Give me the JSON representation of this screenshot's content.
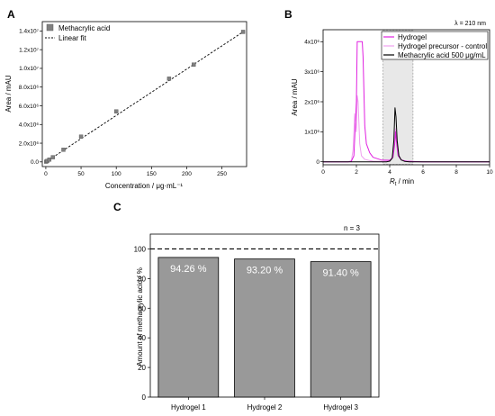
{
  "panels": {
    "A": "A",
    "B": "B",
    "C": "C"
  },
  "chart_data": [
    {
      "id": "A",
      "type": "scatter",
      "xlabel": "Concentration / μg·mL⁻¹",
      "ylabel": "Area / mAU",
      "xlim": [
        -5,
        285
      ],
      "ylim": [
        -500000.0,
        15000000.0
      ],
      "xticks": [
        0,
        50,
        100,
        150,
        200,
        250
      ],
      "yticks": [
        0,
        2000000,
        4000000,
        6000000,
        8000000,
        10000000,
        12000000,
        14000000
      ],
      "ytick_labels": [
        "0.0",
        "2.0x10⁶",
        "4.0x10⁶",
        "6.0x10⁶",
        "8.0x10⁶",
        "1.0x10⁷",
        "1.2x10⁷",
        "1.4x10⁷"
      ],
      "series": [
        {
          "name": "Methacrylic acid",
          "marker": "square",
          "color": "#808080",
          "x": [
            0.5,
            2,
            5,
            10,
            25,
            50,
            100,
            175,
            210,
            280
          ],
          "y": [
            25000,
            100000,
            250000,
            500000,
            1300000,
            2700000,
            5400000,
            8900000,
            10400000,
            13900000
          ]
        },
        {
          "name": "Linear fit",
          "style": "dashed",
          "color": "#000000",
          "x": [
            0,
            282
          ],
          "y": [
            0,
            14000000
          ]
        }
      ],
      "legend": "top-left"
    },
    {
      "id": "B",
      "type": "line",
      "annotation": "λ = 210 nm",
      "xlabel_main": "R",
      "xlabel_sub": "t",
      "xlabel_rest": " / min",
      "ylabel": "Area / mAU",
      "xlim": [
        0,
        10
      ],
      "ylim": [
        -100000,
        4400000
      ],
      "xticks": [
        0,
        2,
        4,
        6,
        8,
        10
      ],
      "yticks": [
        0,
        1000000,
        2000000,
        3000000,
        4000000
      ],
      "ytick_labels": [
        "0",
        "1x10⁶",
        "2x10⁶",
        "3x10⁶",
        "4x10⁶"
      ],
      "shaded_region": [
        3.6,
        5.4
      ],
      "series": [
        {
          "name": "Hydrogel",
          "color": "#e020e0",
          "x": [
            0,
            1.5,
            1.7,
            1.85,
            2.0,
            2.05,
            2.1,
            2.15,
            2.3,
            2.35,
            2.4,
            2.5,
            2.6,
            2.8,
            3.0,
            3.5,
            4.0,
            4.2,
            4.3,
            4.35,
            4.4,
            4.5,
            4.7,
            5.0,
            6.0,
            10
          ],
          "y": [
            0,
            0,
            20000,
            200000,
            2000000,
            4000000,
            4000000,
            4000000,
            4000000,
            4000000,
            3500000,
            1200000,
            600000,
            300000,
            150000,
            60000,
            50000,
            150000,
            600000,
            1000000,
            700000,
            200000,
            60000,
            20000,
            0,
            0
          ]
        },
        {
          "name": "Hydrogel precursor - control",
          "color": "#f0a0f0",
          "x": [
            0,
            1.5,
            1.7,
            1.8,
            1.9,
            2.0,
            2.05,
            2.1,
            2.2,
            2.3,
            2.5,
            2.8,
            3.0,
            3.5,
            4.0,
            4.2,
            4.3,
            4.35,
            4.4,
            4.5,
            4.7,
            5.0,
            6.0,
            10
          ],
          "y": [
            0,
            0,
            30000,
            400000,
            1600000,
            1000000,
            2200000,
            2000000,
            600000,
            200000,
            80000,
            40000,
            20000,
            10000,
            20000,
            200000,
            700000,
            1100000,
            800000,
            250000,
            60000,
            15000,
            0,
            0
          ]
        },
        {
          "name": "Methacrylic acid 500 μg/mL",
          "color": "#000000",
          "x": [
            0,
            3.8,
            4.0,
            4.15,
            4.25,
            4.32,
            4.38,
            4.45,
            4.55,
            4.7,
            4.9,
            5.2,
            10
          ],
          "y": [
            0,
            0,
            20000,
            120000,
            700000,
            1800000,
            1500000,
            700000,
            200000,
            60000,
            15000,
            0,
            0
          ]
        }
      ],
      "legend": "top-right"
    },
    {
      "id": "C",
      "type": "bar",
      "annotation": "n = 3",
      "ylabel": "Amount of methacrylic acid / %",
      "ylim": [
        0,
        110
      ],
      "yticks": [
        0,
        20,
        40,
        60,
        80,
        100
      ],
      "reference_line": 100,
      "categories": [
        "Hydrogel 1",
        "Hydrogel 2",
        "Hydrogel 3"
      ],
      "values": [
        94.26,
        93.2,
        91.4
      ],
      "value_labels": [
        "94.26 %",
        "93.20 %",
        "91.40 %"
      ],
      "bar_color": "#999999"
    }
  ]
}
